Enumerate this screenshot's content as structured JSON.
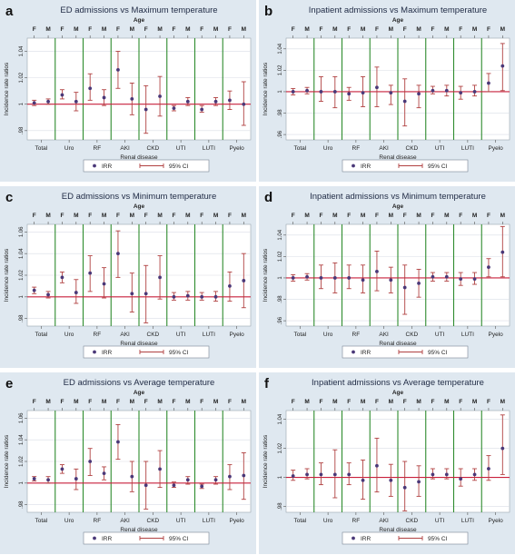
{
  "colors": {
    "frame_bg": "#dfe8f0",
    "plot_bg": "#ffffff",
    "ref_line": "#c8203c",
    "ci": "#b04040",
    "irr_point": "#4a3878",
    "group_sep": "#2e8b2e",
    "grid": "#d9dee6"
  },
  "shared": {
    "top_axis_label": "Age",
    "sex_labels": [
      "F",
      "M"
    ],
    "xlabel": "Renal disease",
    "ylabel": "Incidence rate ratios",
    "legend": [
      "IRR",
      "95% CI"
    ]
  },
  "chart_data": [
    {
      "letter": "a",
      "type": "scatter",
      "title": "ED admissions vs Maximum temperature",
      "categories": [
        "Total",
        "Uro",
        "RF",
        "AKI",
        "CKD",
        "UTI",
        "LUTI",
        "Pyelo"
      ],
      "yticks": [
        ".98",
        "1",
        "1.02",
        "1.04"
      ],
      "ytick_values": [
        0.98,
        1.0,
        1.02,
        1.04
      ],
      "ylim": [
        0.973,
        1.05
      ],
      "series": [
        {
          "name": "IRR",
          "values": [
            1.001,
            1.002,
            1.007,
            1.002,
            1.012,
            1.005,
            1.026,
            1.004,
            0.996,
            1.006,
            0.997,
            1.002,
            0.996,
            1.002,
            1.003,
            1.0
          ]
        },
        {
          "name": "95% CI",
          "low": [
            0.999,
            1.0,
            1.004,
            0.995,
            1.003,
            0.999,
            1.012,
            0.992,
            0.978,
            0.991,
            0.995,
            0.999,
            0.994,
            0.999,
            0.996,
            0.984
          ],
          "high": [
            1.003,
            1.004,
            1.011,
            1.009,
            1.023,
            1.011,
            1.04,
            1.016,
            1.014,
            1.021,
            0.999,
            1.005,
            0.999,
            1.005,
            1.01,
            1.017
          ]
        }
      ]
    },
    {
      "letter": "b",
      "type": "scatter",
      "title": "Inpatient admissions vs Maximum temperature",
      "categories": [
        "Total",
        "Uro",
        "RF",
        "AKI",
        "CKD",
        "UTI",
        "LUTI",
        "Pyelo"
      ],
      "yticks": [
        ".96",
        ".98",
        "1",
        "1.02",
        "1.04"
      ],
      "ytick_values": [
        0.96,
        0.98,
        1.0,
        1.02,
        1.04
      ],
      "ylim": [
        0.955,
        1.05
      ],
      "series": [
        {
          "name": "IRR",
          "values": [
            1.0,
            1.001,
            1.0,
            1.0,
            0.998,
            0.999,
            1.004,
            0.999,
            0.991,
            0.998,
            1.001,
            1.001,
            0.999,
            1.0,
            1.008,
            1.024
          ]
        },
        {
          "name": "95% CI",
          "low": [
            0.997,
            0.998,
            0.991,
            0.985,
            0.992,
            0.986,
            0.986,
            0.988,
            0.968,
            0.985,
            0.998,
            0.996,
            0.993,
            0.996,
            1.0,
            1.001
          ],
          "high": [
            1.003,
            1.004,
            1.014,
            1.014,
            1.004,
            1.014,
            1.023,
            1.006,
            1.012,
            1.006,
            1.005,
            1.006,
            1.005,
            1.006,
            1.017,
            1.045
          ]
        }
      ]
    },
    {
      "letter": "c",
      "type": "scatter",
      "title": "ED admissions vs Minimum temperature",
      "categories": [
        "Total",
        "Uro",
        "RF",
        "AKI",
        "CKD",
        "UTI",
        "LUTI",
        "Pyelo"
      ],
      "yticks": [
        ".98",
        "1",
        "1.02",
        "1.04",
        "1.06"
      ],
      "ytick_values": [
        0.98,
        1.0,
        1.02,
        1.04,
        1.06
      ],
      "ylim": [
        0.973,
        1.067
      ],
      "series": [
        {
          "name": "IRR",
          "values": [
            1.006,
            1.002,
            1.018,
            1.004,
            1.022,
            1.012,
            1.04,
            1.003,
            1.003,
            1.018,
            1.0,
            1.001,
            1.0,
            1.0,
            1.01,
            1.015
          ]
        },
        {
          "name": "95% CI",
          "low": [
            1.003,
            0.999,
            1.013,
            0.994,
            1.005,
            0.999,
            1.018,
            0.986,
            0.976,
            0.998,
            0.997,
            0.997,
            0.997,
            0.996,
            0.996,
            0.99
          ],
          "high": [
            1.009,
            1.005,
            1.023,
            1.016,
            1.038,
            1.027,
            1.061,
            1.022,
            1.029,
            1.038,
            1.004,
            1.005,
            1.004,
            1.005,
            1.023,
            1.04
          ]
        }
      ]
    },
    {
      "letter": "d",
      "type": "scatter",
      "title": "Inpatient admissions vs Minimum temperature",
      "categories": [
        "Total",
        "Uro",
        "RF",
        "AKI",
        "CKD",
        "UTI",
        "LUTI",
        "Pyelo"
      ],
      "yticks": [
        ".96",
        ".98",
        "1",
        "1.02",
        "1.04"
      ],
      "ytick_values": [
        0.96,
        0.98,
        1.0,
        1.02,
        1.04
      ],
      "ylim": [
        0.955,
        1.05
      ],
      "series": [
        {
          "name": "IRR",
          "values": [
            1.0,
            1.001,
            1.0,
            1.0,
            1.0,
            0.998,
            1.006,
            0.998,
            0.991,
            0.995,
            1.001,
            1.001,
            0.999,
            0.999,
            1.01,
            1.024
          ]
        },
        {
          "name": "95% CI",
          "low": [
            0.997,
            0.998,
            0.99,
            0.986,
            0.99,
            0.986,
            0.988,
            0.986,
            0.966,
            0.982,
            0.997,
            0.997,
            0.993,
            0.994,
            1.001,
            1.001
          ],
          "high": [
            1.003,
            1.004,
            1.012,
            1.014,
            1.012,
            1.012,
            1.025,
            1.01,
            1.012,
            1.008,
            1.005,
            1.005,
            1.005,
            1.005,
            1.018,
            1.048
          ]
        }
      ]
    },
    {
      "letter": "e",
      "type": "scatter",
      "title": "ED admissions vs Average temperature",
      "categories": [
        "Total",
        "Uro",
        "RF",
        "AKI",
        "CKD",
        "UTI",
        "LUTI",
        "Pyelo"
      ],
      "yticks": [
        ".98",
        "1",
        "1.02",
        "1.04",
        "1.06"
      ],
      "ytick_values": [
        0.98,
        1.0,
        1.02,
        1.04,
        1.06
      ],
      "ylim": [
        0.973,
        1.067
      ],
      "series": [
        {
          "name": "IRR",
          "values": [
            1.004,
            1.003,
            1.013,
            1.004,
            1.02,
            1.009,
            1.038,
            1.006,
            0.998,
            1.013,
            0.998,
            1.003,
            0.997,
            1.003,
            1.006,
            1.007
          ]
        },
        {
          "name": "95% CI",
          "low": [
            1.002,
            1.0,
            1.009,
            0.994,
            1.007,
            1.003,
            1.022,
            0.992,
            0.976,
            0.996,
            0.996,
            0.999,
            0.995,
            0.999,
            0.994,
            0.985
          ],
          "high": [
            1.006,
            1.006,
            1.017,
            1.013,
            1.032,
            1.015,
            1.054,
            1.02,
            1.02,
            1.03,
            1.001,
            1.006,
            0.999,
            1.006,
            1.017,
            1.028
          ]
        }
      ]
    },
    {
      "letter": "f",
      "type": "scatter",
      "title": "Inpatient admissions vs Average temperature",
      "categories": [
        "Total",
        "Uro",
        "RF",
        "AKI",
        "CKD",
        "UTI",
        "LUTI",
        "Pyelo"
      ],
      "yticks": [
        ".98",
        "1",
        "1.02",
        "1.04"
      ],
      "ytick_values": [
        0.98,
        1.0,
        1.02,
        1.04
      ],
      "ylim": [
        0.976,
        1.046
      ],
      "series": [
        {
          "name": "IRR",
          "values": [
            1.001,
            1.002,
            1.002,
            1.002,
            1.002,
            0.998,
            1.008,
            0.998,
            0.993,
            0.997,
            1.002,
            1.002,
            0.999,
            1.002,
            1.006,
            1.02
          ]
        },
        {
          "name": "95% CI",
          "low": [
            0.998,
            0.999,
            0.995,
            0.986,
            0.995,
            0.985,
            0.99,
            0.987,
            0.977,
            0.987,
            0.999,
            0.999,
            0.994,
            0.998,
            0.998,
            1.002
          ],
          "high": [
            1.005,
            1.006,
            1.01,
            1.019,
            1.01,
            1.012,
            1.027,
            1.009,
            1.011,
            1.008,
            1.006,
            1.006,
            1.006,
            1.006,
            1.015,
            1.043
          ]
        }
      ]
    }
  ]
}
